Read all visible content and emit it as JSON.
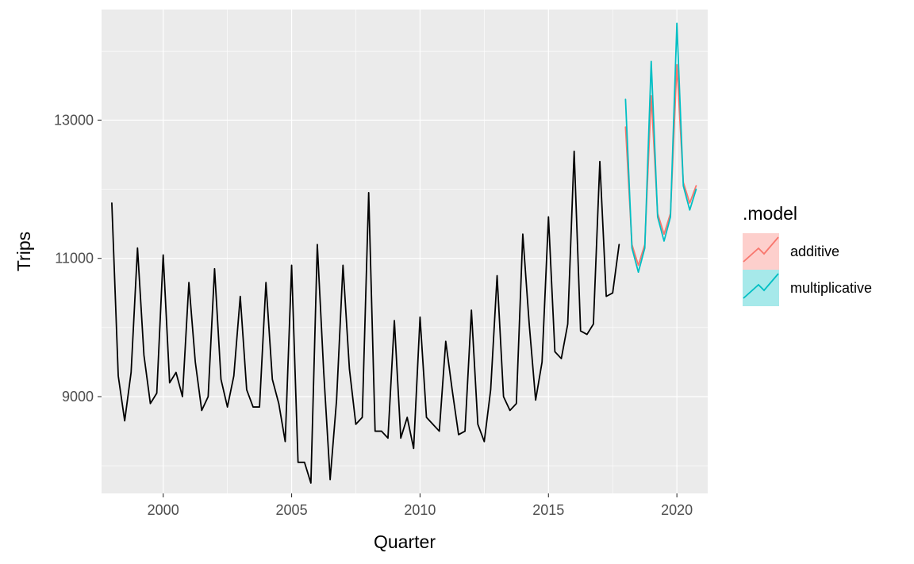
{
  "chart_data": {
    "type": "line",
    "xlabel": "Quarter",
    "ylabel": "Trips",
    "xlim": [
      1997.6,
      2021.2
    ],
    "ylim": [
      7600,
      14600
    ],
    "x_ticks": [
      2000,
      2005,
      2010,
      2015,
      2020
    ],
    "x_tick_labels": [
      "2000",
      "2005",
      "2010",
      "2015",
      "2020"
    ],
    "y_ticks": [
      9000,
      11000,
      13000
    ],
    "y_tick_labels": [
      "9000",
      "11000",
      "13000"
    ],
    "grid": true,
    "legend": {
      "title": ".model",
      "position": "right",
      "entries": [
        {
          "label": "additive",
          "color": "#F8766D",
          "fill": "#F8766D"
        },
        {
          "label": "multiplicative",
          "color": "#00BFC4",
          "fill": "#00BFC4"
        }
      ]
    },
    "series": [
      {
        "role": "observed",
        "color": "#000000",
        "start": 1998.0,
        "step": 0.25,
        "values": [
          11800,
          9300,
          8650,
          9350,
          11150,
          9600,
          8900,
          9050,
          11050,
          9200,
          9350,
          9000,
          10650,
          9500,
          8800,
          9000,
          10850,
          9250,
          8850,
          9300,
          10450,
          9100,
          8850,
          8850,
          10650,
          9250,
          8900,
          8350,
          10900,
          8050,
          8050,
          7750,
          11200,
          9350,
          7800,
          8950,
          10900,
          9400,
          8600,
          8700,
          11950,
          8500,
          8500,
          8400,
          10100,
          8400,
          8700,
          8250,
          10150,
          8700,
          8600,
          8500,
          9800,
          9100,
          8450,
          8500,
          10250,
          8600,
          8350,
          9100,
          10750,
          9000,
          8800,
          8900,
          11350,
          10050,
          8950,
          9500,
          11600,
          9650,
          9550,
          10050,
          12550,
          9950,
          9900,
          10050,
          12400,
          10450,
          10500,
          11200
        ]
      },
      {
        "name": "additive",
        "color": "#F8766D",
        "start": 2018.0,
        "step": 0.25,
        "values": [
          12900,
          11200,
          10900,
          11200,
          13350,
          11650,
          11350,
          11650,
          13800,
          12100,
          11800,
          12050
        ]
      },
      {
        "name": "multiplicative",
        "color": "#00BFC4",
        "start": 2018.0,
        "step": 0.25,
        "values": [
          13300,
          11150,
          10800,
          11150,
          13850,
          11600,
          11250,
          11600,
          14400,
          12050,
          11700,
          12000
        ]
      }
    ]
  }
}
